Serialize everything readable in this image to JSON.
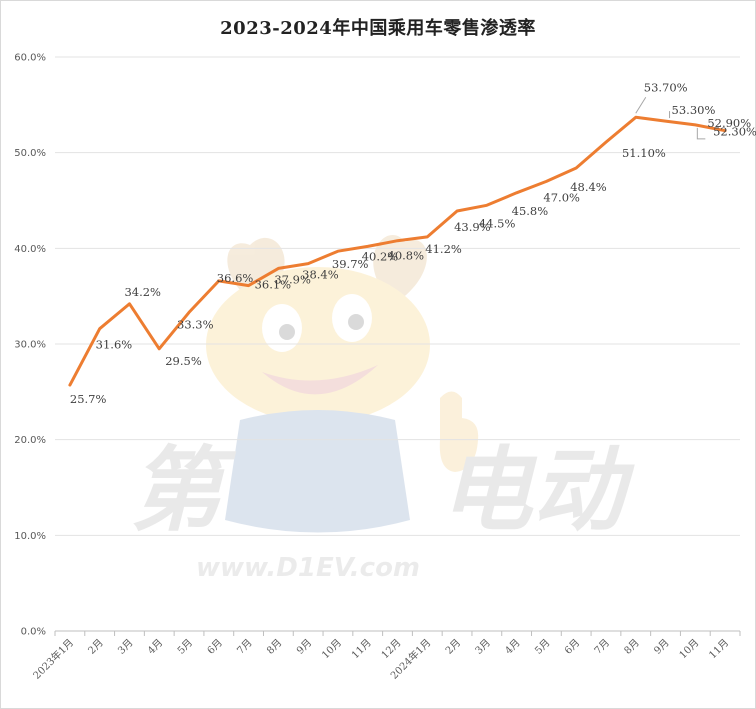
{
  "chart_data": {
    "type": "line",
    "title": "2023-2024年中国乘用车零售渗透率",
    "xlabel": "",
    "ylabel": "",
    "ylim": [
      0,
      60
    ],
    "yticks": [
      "0.0%",
      "10.0%",
      "20.0%",
      "30.0%",
      "40.0%",
      "50.0%",
      "60.0%"
    ],
    "grid": true,
    "legend": "none",
    "categories": [
      "2023年1月",
      "2月",
      "3月",
      "4月",
      "5月",
      "6月",
      "7月",
      "8月",
      "9月",
      "10月",
      "11月",
      "12月",
      "2024年1月",
      "2月",
      "3月",
      "4月",
      "5月",
      "6月",
      "7月",
      "8月",
      "9月",
      "10月",
      "11月"
    ],
    "series": [
      {
        "color": "#ED7D31",
        "values": [
          25.7,
          31.6,
          34.2,
          29.5,
          33.3,
          36.6,
          36.1,
          37.9,
          38.4,
          39.7,
          40.2,
          40.8,
          41.2,
          43.9,
          44.5,
          45.8,
          47.0,
          48.4,
          51.1,
          53.7,
          53.3,
          52.9,
          52.3
        ],
        "data_labels": [
          "25.7%",
          "31.6%",
          "34.2%",
          "29.5%",
          "33.3%",
          "36.6%",
          "36.1%",
          "37.9%",
          "38.4%",
          "39.7%",
          "40.2%",
          "40.8%",
          "41.2%",
          "43.9%",
          "44.5%",
          "45.8%",
          "47.0%",
          "48.4%",
          "51.10%",
          "53.70%",
          "53.30%",
          "52.90%",
          "52.30%"
        ]
      }
    ]
  },
  "watermark": {
    "text_cn_left": "第",
    "text_num": "1",
    "text_cn_right": "电动",
    "url": "www.D1EV.com"
  }
}
